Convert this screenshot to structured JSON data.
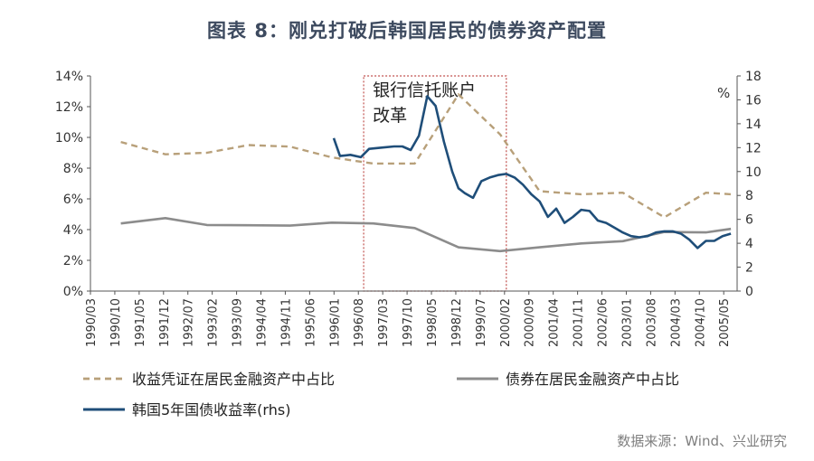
{
  "page": {
    "title": "图表 8：刚兑打破后韩国居民的债券资产配置",
    "source": "数据来源：Wind、兴业研究"
  },
  "annotation": {
    "lines": [
      "银行信托账户",
      "改革"
    ],
    "start": 1996.67,
    "end": 2000.1
  },
  "colors": {
    "trust": "#b8a07a",
    "bond_share": "#8c8c8c",
    "yield": "#1f4e79",
    "annotation": "#c0504d",
    "axis": "#555555",
    "title": "#3d4a5f",
    "source": "#7f7f7f"
  },
  "chart_data": {
    "type": "line",
    "title": "",
    "xlabel": "",
    "ylabel_left": "",
    "ylabel_right": "%",
    "ylim_left": [
      0,
      14
    ],
    "ylim_right": [
      0,
      18
    ],
    "left_ticks": [
      "0%",
      "2%",
      "4%",
      "6%",
      "8%",
      "10%",
      "12%",
      "14%"
    ],
    "right_ticks": [
      "0",
      "2",
      "4",
      "6",
      "8",
      "10",
      "12",
      "14",
      "16",
      "18"
    ],
    "x_ticks": [
      "1990/03",
      "1990/10",
      "1991/05",
      "1991/12",
      "1992/07",
      "1993/02",
      "1993/09",
      "1994/04",
      "1994/11",
      "1995/06",
      "1996/01",
      "1996/08",
      "1997/03",
      "1997/10",
      "1998/05",
      "1998/12",
      "1999/07",
      "2000/02",
      "2000/09",
      "2001/04",
      "2001/11",
      "2002/06",
      "2003/01",
      "2003/08",
      "2004/03",
      "2004/10",
      "2005/05"
    ],
    "grid": false,
    "legend_position": "bottom",
    "series": [
      {
        "name": "收益凭证在居民金融资产中占比",
        "axis": "left",
        "style": "dashed",
        "x": [
          1990.83,
          1991.9,
          1992.9,
          1993.9,
          1994.9,
          1995.9,
          1996.9,
          1997.9,
          1998.95,
          1999.95,
          2000.9,
          2001.9,
          2002.9,
          2003.9,
          2004.9,
          2005.5
        ],
        "y": [
          9.7,
          8.9,
          9.0,
          9.5,
          9.4,
          8.7,
          8.3,
          8.3,
          12.8,
          10.2,
          6.5,
          6.3,
          6.4,
          4.8,
          6.4,
          6.3
        ]
      },
      {
        "name": "债券在居民金融资产中占比",
        "axis": "left",
        "style": "solid",
        "x": [
          1990.83,
          1991.9,
          1992.9,
          1993.9,
          1994.9,
          1995.9,
          1996.9,
          1997.9,
          1998.95,
          1999.95,
          2000.9,
          2001.9,
          2002.9,
          2003.9,
          2004.9,
          2005.5
        ],
        "y": [
          4.4,
          4.75,
          4.3,
          4.28,
          4.26,
          4.45,
          4.4,
          4.1,
          2.85,
          2.6,
          2.85,
          3.1,
          3.25,
          3.85,
          3.82,
          4.05
        ]
      },
      {
        "name": "韩国5年国债收益率(rhs)",
        "axis": "right",
        "style": "solid",
        "x": [
          1995.95,
          1996.1,
          1996.35,
          1996.6,
          1996.8,
          1997.1,
          1997.4,
          1997.6,
          1997.8,
          1998.0,
          1998.2,
          1998.4,
          1998.6,
          1998.8,
          1998.95,
          1999.1,
          1999.3,
          1999.5,
          1999.7,
          1999.9,
          2000.1,
          2000.3,
          2000.5,
          2000.7,
          2000.9,
          2001.1,
          2001.3,
          2001.5,
          2001.7,
          2001.9,
          2002.1,
          2002.3,
          2002.5,
          2002.7,
          2002.9,
          2003.1,
          2003.3,
          2003.5,
          2003.7,
          2003.9,
          2004.1,
          2004.3,
          2004.5,
          2004.7,
          2004.9,
          2005.1,
          2005.3,
          2005.5
        ],
        "y": [
          12.8,
          11.3,
          11.4,
          11.2,
          11.9,
          12.0,
          12.1,
          12.1,
          11.8,
          13.0,
          16.3,
          15.5,
          12.5,
          10.0,
          8.6,
          8.2,
          7.8,
          9.2,
          9.5,
          9.7,
          9.8,
          9.5,
          8.9,
          8.1,
          7.5,
          6.2,
          6.9,
          5.7,
          6.2,
          6.8,
          6.7,
          5.9,
          5.7,
          5.3,
          4.9,
          4.6,
          4.5,
          4.6,
          4.9,
          5.0,
          5.0,
          4.8,
          4.3,
          3.6,
          4.2,
          4.2,
          4.6,
          4.8
        ]
      }
    ]
  }
}
